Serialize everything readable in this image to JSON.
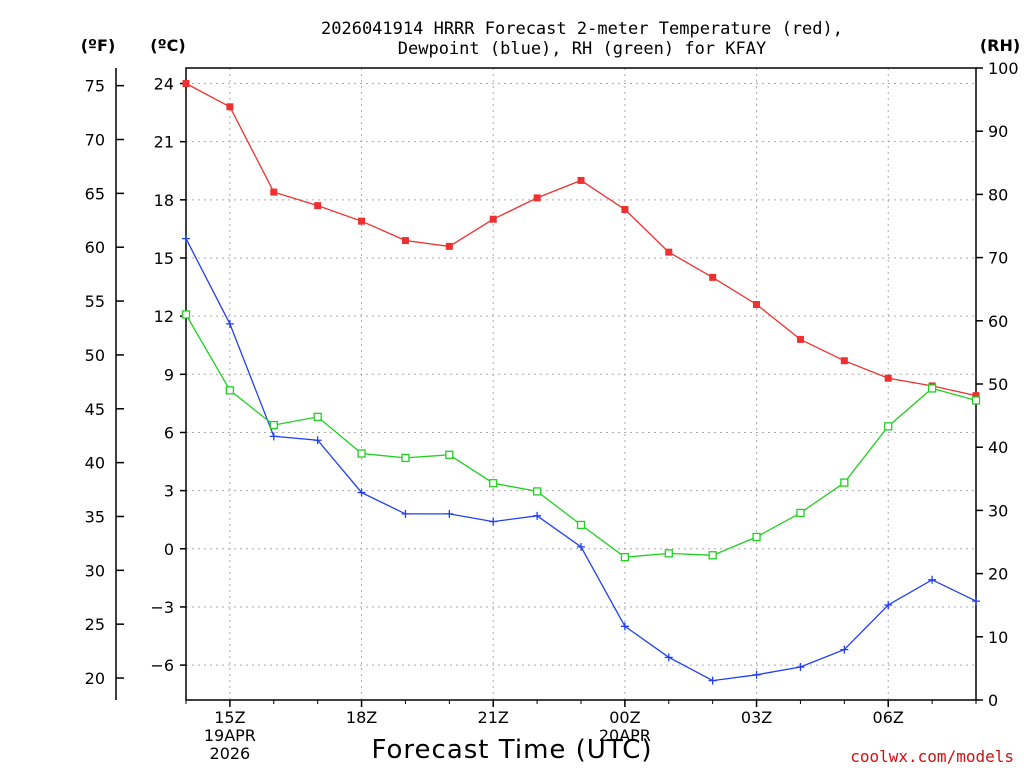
{
  "chart_data": {
    "type": "line",
    "title_line1": "2026041914 HRRR Forecast 2-meter Temperature (red),",
    "title_line2": "Dewpoint (blue), RH (green) for KFAY",
    "xlabel": "Forecast Time (UTC)",
    "credit": "coolwx.com/models",
    "units": {
      "fahrenheit": "(ºF)",
      "celsius": "(ºC)",
      "rh": "(RH)"
    },
    "x_hours": [
      14,
      15,
      16,
      17,
      18,
      19,
      20,
      21,
      22,
      23,
      24,
      25,
      26,
      27,
      28,
      29,
      30,
      31,
      32
    ],
    "x_range": [
      14,
      32
    ],
    "x_ticks": [
      {
        "hour": 15,
        "label": "15Z",
        "sub1": "19APR",
        "sub2": "2026"
      },
      {
        "hour": 18,
        "label": "18Z",
        "sub1": "",
        "sub2": ""
      },
      {
        "hour": 21,
        "label": "21Z",
        "sub1": "",
        "sub2": ""
      },
      {
        "hour": 24,
        "label": "00Z",
        "sub1": "20APR",
        "sub2": ""
      },
      {
        "hour": 27,
        "label": "03Z",
        "sub1": "",
        "sub2": ""
      },
      {
        "hour": 30,
        "label": "06Z",
        "sub1": "",
        "sub2": ""
      }
    ],
    "celsius_range": [
      -7.8,
      24.8
    ],
    "celsius_ticks": [
      "24",
      "21",
      "18",
      "15",
      "12",
      "9",
      "6",
      "3",
      "0",
      "−3",
      "−6"
    ],
    "fahrenheit_ticks": [
      "75",
      "70",
      "65",
      "60",
      "55",
      "50",
      "45",
      "40",
      "35",
      "30",
      "25",
      "20"
    ],
    "rh_range": [
      0,
      100
    ],
    "rh_ticks": [
      "100",
      "90",
      "80",
      "70",
      "60",
      "50",
      "40",
      "30",
      "20",
      "10",
      "0"
    ],
    "series": [
      {
        "name": "2-meter Temperature",
        "color": "#f03030",
        "marker": "filled-square",
        "axis": "celsius",
        "values": [
          24.0,
          22.8,
          18.4,
          17.7,
          16.9,
          15.9,
          15.6,
          17.0,
          18.1,
          19.0,
          17.5,
          15.3,
          14.0,
          12.6,
          10.8,
          9.7,
          8.8,
          8.4,
          7.9
        ]
      },
      {
        "name": "Dewpoint",
        "color": "#2040f0",
        "marker": "plus",
        "axis": "celsius",
        "values": [
          16.0,
          11.6,
          5.8,
          5.6,
          2.9,
          1.8,
          1.8,
          1.4,
          1.7,
          0.1,
          -4.0,
          -5.6,
          -6.8,
          -6.5,
          -6.1,
          -5.2,
          -2.9,
          -1.6,
          -2.7
        ]
      },
      {
        "name": "Relative Humidity",
        "color": "#20d020",
        "marker": "open-square",
        "axis": "rh",
        "values": [
          61.0,
          49.0,
          43.5,
          44.8,
          39.0,
          38.3,
          38.8,
          34.3,
          33.0,
          27.7,
          22.6,
          23.2,
          22.9,
          25.8,
          29.6,
          34.4,
          43.3,
          49.3,
          47.4
        ]
      }
    ]
  }
}
